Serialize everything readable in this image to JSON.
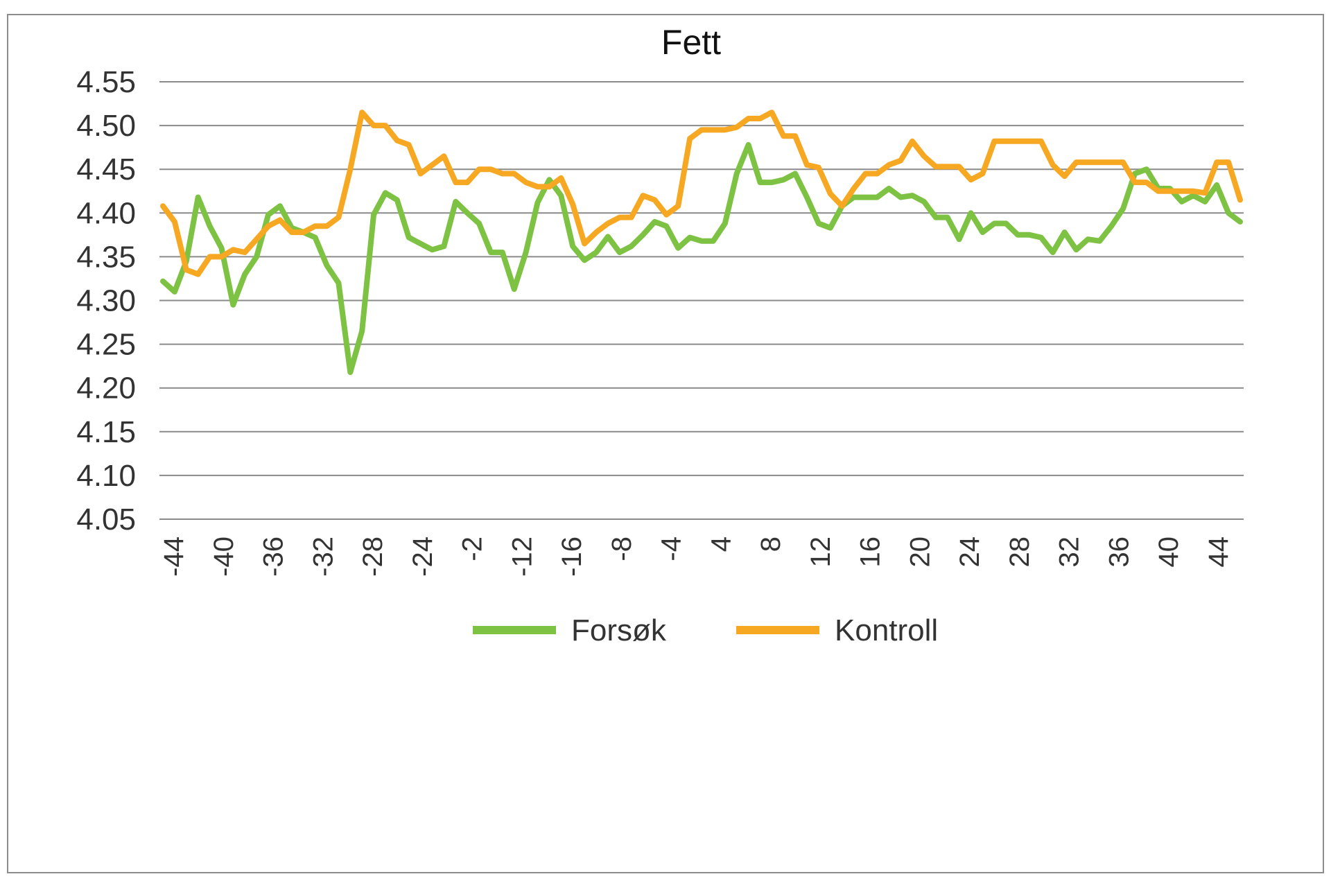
{
  "chart_data": {
    "type": "line",
    "title": "Fett",
    "xlabel": "",
    "ylabel": "",
    "ylim": [
      4.05,
      4.55
    ],
    "yticks": [
      "4.55",
      "4.50",
      "4.45",
      "4.40",
      "4.35",
      "4.30",
      "4.25",
      "4.20",
      "4.15",
      "4.10",
      "4.05"
    ],
    "x_tick_labels": [
      "-44",
      "-40",
      "-36",
      "-32",
      "-28",
      "-24",
      "-2",
      "-12",
      "-16",
      "-8",
      "-4",
      "4",
      "8",
      "12",
      "16",
      "20",
      "24",
      "28",
      "32",
      "36",
      "40",
      "44"
    ],
    "grid": true,
    "legend_position": "bottom",
    "series": [
      {
        "name": "Forsøk",
        "color": "#7dc242",
        "values": [
          4.322,
          4.31,
          4.345,
          4.418,
          4.385,
          4.36,
          4.295,
          4.33,
          4.35,
          4.398,
          4.408,
          4.383,
          4.378,
          4.372,
          4.34,
          4.32,
          4.218,
          4.265,
          4.398,
          4.423,
          4.415,
          4.372,
          4.365,
          4.358,
          4.362,
          4.413,
          4.4,
          4.388,
          4.355,
          4.355,
          4.313,
          4.355,
          4.412,
          4.438,
          4.42,
          4.362,
          4.346,
          4.355,
          4.373,
          4.355,
          4.362,
          4.375,
          4.39,
          4.385,
          4.36,
          4.372,
          4.368,
          4.368,
          4.388,
          4.445,
          4.478,
          4.435,
          4.435,
          4.438,
          4.445,
          4.418,
          4.388,
          4.383,
          4.408,
          4.418,
          4.418,
          4.418,
          4.428,
          4.418,
          4.42,
          4.413,
          4.395,
          4.395,
          4.37,
          4.4,
          4.378,
          4.388,
          4.388,
          4.375,
          4.375,
          4.372,
          4.355,
          4.378,
          4.358,
          4.37,
          4.368,
          4.385,
          4.405,
          4.445,
          4.45,
          4.428,
          4.428,
          4.413,
          4.42,
          4.413,
          4.432,
          4.4,
          4.39
        ]
      },
      {
        "name": "Kontroll",
        "color": "#f7a823",
        "values": [
          4.408,
          4.39,
          4.335,
          4.33,
          4.35,
          4.35,
          4.358,
          4.355,
          4.37,
          4.385,
          4.392,
          4.378,
          4.378,
          4.385,
          4.385,
          4.395,
          4.45,
          4.515,
          4.5,
          4.5,
          4.483,
          4.478,
          4.445,
          4.455,
          4.465,
          4.435,
          4.435,
          4.45,
          4.45,
          4.445,
          4.445,
          4.435,
          4.43,
          4.43,
          4.44,
          4.41,
          4.365,
          4.378,
          4.388,
          4.395,
          4.395,
          4.42,
          4.415,
          4.398,
          4.408,
          4.485,
          4.495,
          4.495,
          4.495,
          4.498,
          4.508,
          4.508,
          4.515,
          4.488,
          4.488,
          4.455,
          4.452,
          4.422,
          4.408,
          4.428,
          4.445,
          4.445,
          4.455,
          4.46,
          4.482,
          4.465,
          4.453,
          4.453,
          4.453,
          4.438,
          4.445,
          4.482,
          4.482,
          4.482,
          4.482,
          4.482,
          4.455,
          4.442,
          4.458,
          4.458,
          4.458,
          4.458,
          4.458,
          4.435,
          4.435,
          4.425,
          4.425,
          4.425,
          4.425,
          4.423,
          4.458,
          4.458,
          4.415
        ]
      }
    ]
  }
}
